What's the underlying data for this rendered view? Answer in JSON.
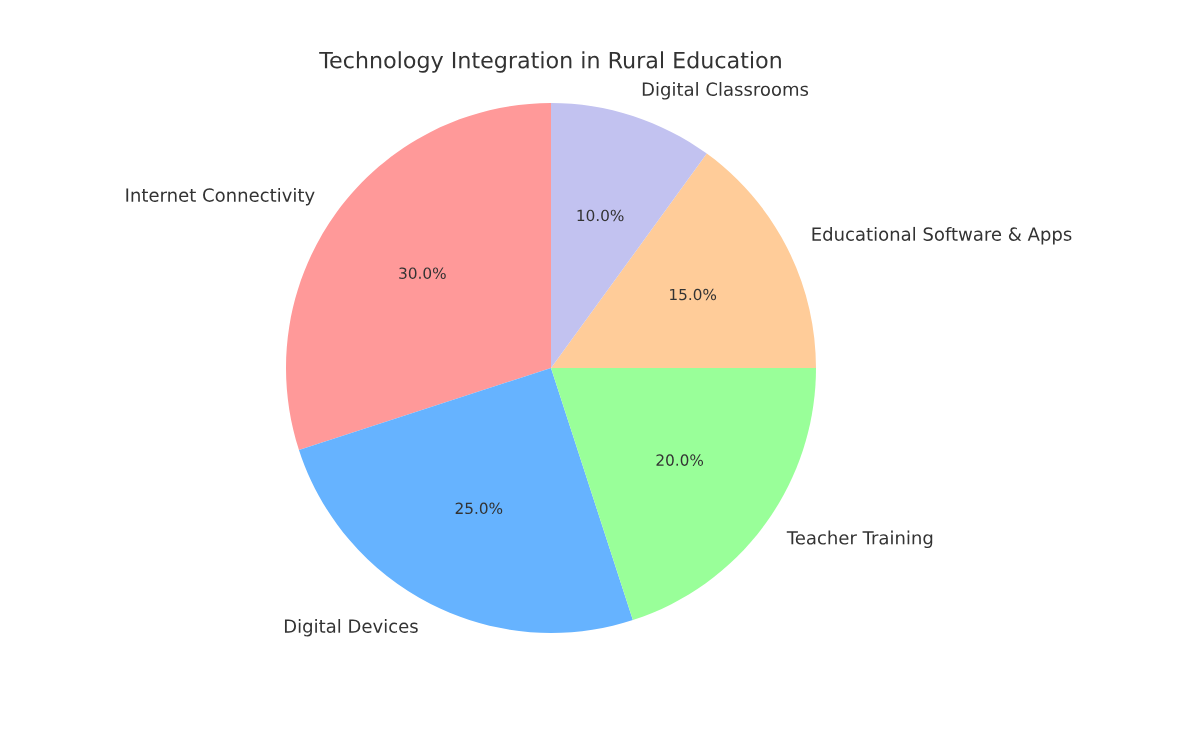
{
  "chart_data": {
    "type": "pie",
    "title": "Technology Integration in Rural Education",
    "categories": [
      "Internet Connectivity",
      "Digital Devices",
      "Teacher Training",
      "Educational Software & Apps",
      "Digital Classrooms"
    ],
    "values": [
      30,
      25,
      20,
      15,
      10
    ],
    "value_labels": [
      "30.0%",
      "25.0%",
      "20.0%",
      "15.0%",
      "10.0%"
    ],
    "colors": [
      "#ff9999",
      "#66b3ff",
      "#99ff99",
      "#ffcc99",
      "#c2c2f0"
    ],
    "legend": false
  }
}
